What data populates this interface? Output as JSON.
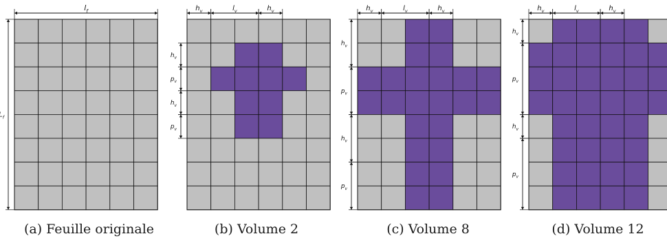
{
  "colors": {
    "cell": "#c0c0c0",
    "highlight": "#6a4c9c",
    "line": "#111111"
  },
  "panels": [
    {
      "id": "a",
      "caption": "(a) Feuille originale",
      "top_labels": [
        {
          "text": "l",
          "sub": "f"
        }
      ],
      "left_labels": [
        {
          "text": "L",
          "sub": "f"
        }
      ],
      "highlight": []
    },
    {
      "id": "b",
      "caption": "(b) Volume 2",
      "top_labels": [
        {
          "text": "h",
          "sub": "v"
        },
        {
          "text": "l",
          "sub": "v"
        },
        {
          "text": "h",
          "sub": "v"
        }
      ],
      "left_labels": [
        {
          "text": "h",
          "sub": "v"
        },
        {
          "text": "p",
          "sub": "v"
        },
        {
          "text": "h",
          "sub": "v"
        },
        {
          "text": "p",
          "sub": "v"
        }
      ],
      "highlight": [
        [
          1,
          2
        ],
        [
          1,
          3
        ],
        [
          2,
          1
        ],
        [
          2,
          2
        ],
        [
          2,
          3
        ],
        [
          2,
          4
        ],
        [
          3,
          2
        ],
        [
          3,
          3
        ],
        [
          4,
          2
        ],
        [
          4,
          3
        ]
      ]
    },
    {
      "id": "c",
      "caption": "(c) Volume 8",
      "top_labels": [
        {
          "text": "h",
          "sub": "v"
        },
        {
          "text": "l",
          "sub": "v"
        },
        {
          "text": "h",
          "sub": "v"
        }
      ],
      "left_labels": [
        {
          "text": "h",
          "sub": "v"
        },
        {
          "text": "p",
          "sub": "v"
        },
        {
          "text": "h",
          "sub": "v"
        },
        {
          "text": "p",
          "sub": "v"
        }
      ],
      "highlight": [
        [
          0,
          2
        ],
        [
          0,
          3
        ],
        [
          1,
          2
        ],
        [
          1,
          3
        ],
        [
          2,
          0
        ],
        [
          2,
          1
        ],
        [
          2,
          2
        ],
        [
          2,
          3
        ],
        [
          2,
          4
        ],
        [
          2,
          5
        ],
        [
          3,
          0
        ],
        [
          3,
          1
        ],
        [
          3,
          2
        ],
        [
          3,
          3
        ],
        [
          3,
          4
        ],
        [
          3,
          5
        ],
        [
          4,
          2
        ],
        [
          4,
          3
        ],
        [
          5,
          2
        ],
        [
          5,
          3
        ],
        [
          6,
          2
        ],
        [
          6,
          3
        ],
        [
          7,
          2
        ],
        [
          7,
          3
        ]
      ]
    },
    {
      "id": "d",
      "caption": "(d) Volume 12",
      "top_labels": [
        {
          "text": "h",
          "sub": "v"
        },
        {
          "text": "l",
          "sub": "v"
        },
        {
          "text": "h",
          "sub": "v"
        }
      ],
      "left_labels": [
        {
          "text": "h",
          "sub": "v"
        },
        {
          "text": "p",
          "sub": "v"
        },
        {
          "text": "h",
          "sub": "v"
        },
        {
          "text": "p",
          "sub": "v"
        }
      ],
      "highlight": [
        [
          0,
          1
        ],
        [
          0,
          2
        ],
        [
          0,
          3
        ],
        [
          0,
          4
        ],
        [
          1,
          0
        ],
        [
          1,
          1
        ],
        [
          1,
          2
        ],
        [
          1,
          3
        ],
        [
          1,
          4
        ],
        [
          1,
          5
        ],
        [
          2,
          0
        ],
        [
          2,
          1
        ],
        [
          2,
          2
        ],
        [
          2,
          3
        ],
        [
          2,
          4
        ],
        [
          2,
          5
        ],
        [
          3,
          0
        ],
        [
          3,
          1
        ],
        [
          3,
          2
        ],
        [
          3,
          3
        ],
        [
          3,
          4
        ],
        [
          3,
          5
        ],
        [
          4,
          1
        ],
        [
          4,
          2
        ],
        [
          4,
          3
        ],
        [
          4,
          4
        ],
        [
          5,
          1
        ],
        [
          5,
          2
        ],
        [
          5,
          3
        ],
        [
          5,
          4
        ],
        [
          6,
          1
        ],
        [
          6,
          2
        ],
        [
          6,
          3
        ],
        [
          6,
          4
        ],
        [
          7,
          1
        ],
        [
          7,
          2
        ],
        [
          7,
          3
        ],
        [
          7,
          4
        ]
      ]
    }
  ]
}
